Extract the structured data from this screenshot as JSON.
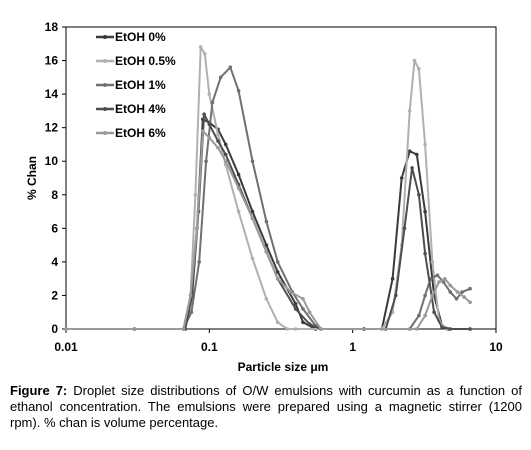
{
  "chart_data": {
    "type": "line",
    "xlabel": "Particle size μm",
    "ylabel": "% Chan",
    "xscale": "log",
    "xlim": [
      0.01,
      10
    ],
    "ylim": [
      0,
      18
    ],
    "x_ticks": [
      0.01,
      0.1,
      1,
      10
    ],
    "x_tick_labels": [
      "0.01",
      "0.1",
      "1",
      "10"
    ],
    "y_ticks": [
      0,
      2,
      4,
      6,
      8,
      10,
      12,
      14,
      16,
      18
    ],
    "y_tick_labels": [
      "0",
      "2",
      "4",
      "6",
      "8",
      "10",
      "12",
      "14",
      "16",
      "18"
    ],
    "grid": false,
    "legend_position": "top-left",
    "series": [
      {
        "name": "EtOH 0%",
        "color": "#3a3a3a",
        "x": [
          0.01,
          0.03,
          0.066,
          0.074,
          0.082,
          0.09,
          0.1,
          0.115,
          0.13,
          0.16,
          0.2,
          0.25,
          0.3,
          0.4,
          0.45,
          0.55,
          1.2,
          1.6,
          1.9,
          2.2,
          2.5,
          2.8,
          3.2,
          3.7,
          4.2,
          4.7,
          6.6
        ],
        "y": [
          0,
          0,
          0,
          2,
          6,
          12.5,
          12.3,
          11.9,
          11,
          9.2,
          7,
          5,
          3.4,
          1.5,
          0.4,
          0,
          0,
          0,
          3,
          9,
          10.6,
          10.4,
          7,
          2,
          0.2,
          0,
          0
        ]
      },
      {
        "name": "EtOH 0.5%",
        "color": "#b0b0b0",
        "x": [
          0.01,
          0.03,
          0.066,
          0.074,
          0.08,
          0.087,
          0.093,
          0.1,
          0.115,
          0.13,
          0.16,
          0.2,
          0.25,
          0.3,
          0.35,
          0.4,
          1.2,
          1.6,
          1.9,
          2.2,
          2.5,
          2.7,
          2.9,
          3.2,
          3.6,
          4.0,
          4.5,
          6.6
        ],
        "y": [
          0,
          0,
          0,
          2,
          8,
          16.8,
          16.4,
          14,
          11.6,
          9.8,
          7,
          4.2,
          1.8,
          0.4,
          0,
          0,
          0,
          0,
          1,
          5,
          13,
          16,
          15.5,
          11,
          4,
          0.5,
          0,
          0
        ]
      },
      {
        "name": "EtOH 1%",
        "color": "#707070",
        "x": [
          0.01,
          0.03,
          0.066,
          0.075,
          0.085,
          0.095,
          0.105,
          0.12,
          0.14,
          0.16,
          0.2,
          0.25,
          0.3,
          0.38,
          0.45,
          0.55,
          0.6,
          2.5,
          2.9,
          3.2,
          3.5,
          3.9,
          4.3,
          4.8,
          5.3,
          5.8,
          6.6
        ],
        "y": [
          0,
          0,
          0,
          1,
          4,
          10,
          13.5,
          15,
          15.6,
          14.2,
          10,
          6.4,
          4,
          2.2,
          1.2,
          0.2,
          0,
          0,
          0.8,
          2,
          3,
          3.2,
          2.8,
          2.2,
          1.8,
          2.2,
          2.4
        ]
      },
      {
        "name": "EtOH 4%",
        "color": "#4e4e4e",
        "x": [
          0.01,
          0.03,
          0.068,
          0.076,
          0.084,
          0.092,
          0.1,
          0.115,
          0.13,
          0.16,
          0.2,
          0.25,
          0.3,
          0.4,
          0.5,
          0.6,
          1.2,
          1.7,
          2.0,
          2.3,
          2.6,
          2.9,
          3.2,
          3.7,
          4.2,
          4.8,
          6.6
        ],
        "y": [
          0,
          0,
          0,
          2,
          7,
          12.8,
          12.2,
          11.2,
          10.4,
          8.6,
          6.6,
          4.6,
          3,
          1.2,
          0.3,
          0,
          0,
          0,
          2,
          6,
          9.6,
          8,
          4.5,
          1,
          0.1,
          0,
          0
        ]
      },
      {
        "name": "EtOH 6%",
        "color": "#9a9a9a",
        "x": [
          0.01,
          0.03,
          0.066,
          0.074,
          0.082,
          0.09,
          0.1,
          0.115,
          0.13,
          0.16,
          0.2,
          0.25,
          0.3,
          0.37,
          0.45,
          0.5,
          0.6,
          2.8,
          3.2,
          3.6,
          4.0,
          4.4,
          4.8,
          5.4,
          6.0,
          6.6
        ],
        "y": [
          0,
          0,
          0,
          2,
          6,
          11.8,
          11.4,
          10.8,
          10,
          8.4,
          6.6,
          4.6,
          3,
          2.2,
          1.8,
          1,
          0,
          0,
          0.8,
          2,
          2.8,
          3,
          2.6,
          2.2,
          1.9,
          1.6
        ]
      }
    ]
  },
  "caption": {
    "label": "Figure 7:",
    "text": " Droplet size distributions of O/W emulsions with curcumin as a function of ethanol concentration. The emulsions were prepared using a magnetic stirrer (1200 rpm). % chan is volume percentage."
  }
}
